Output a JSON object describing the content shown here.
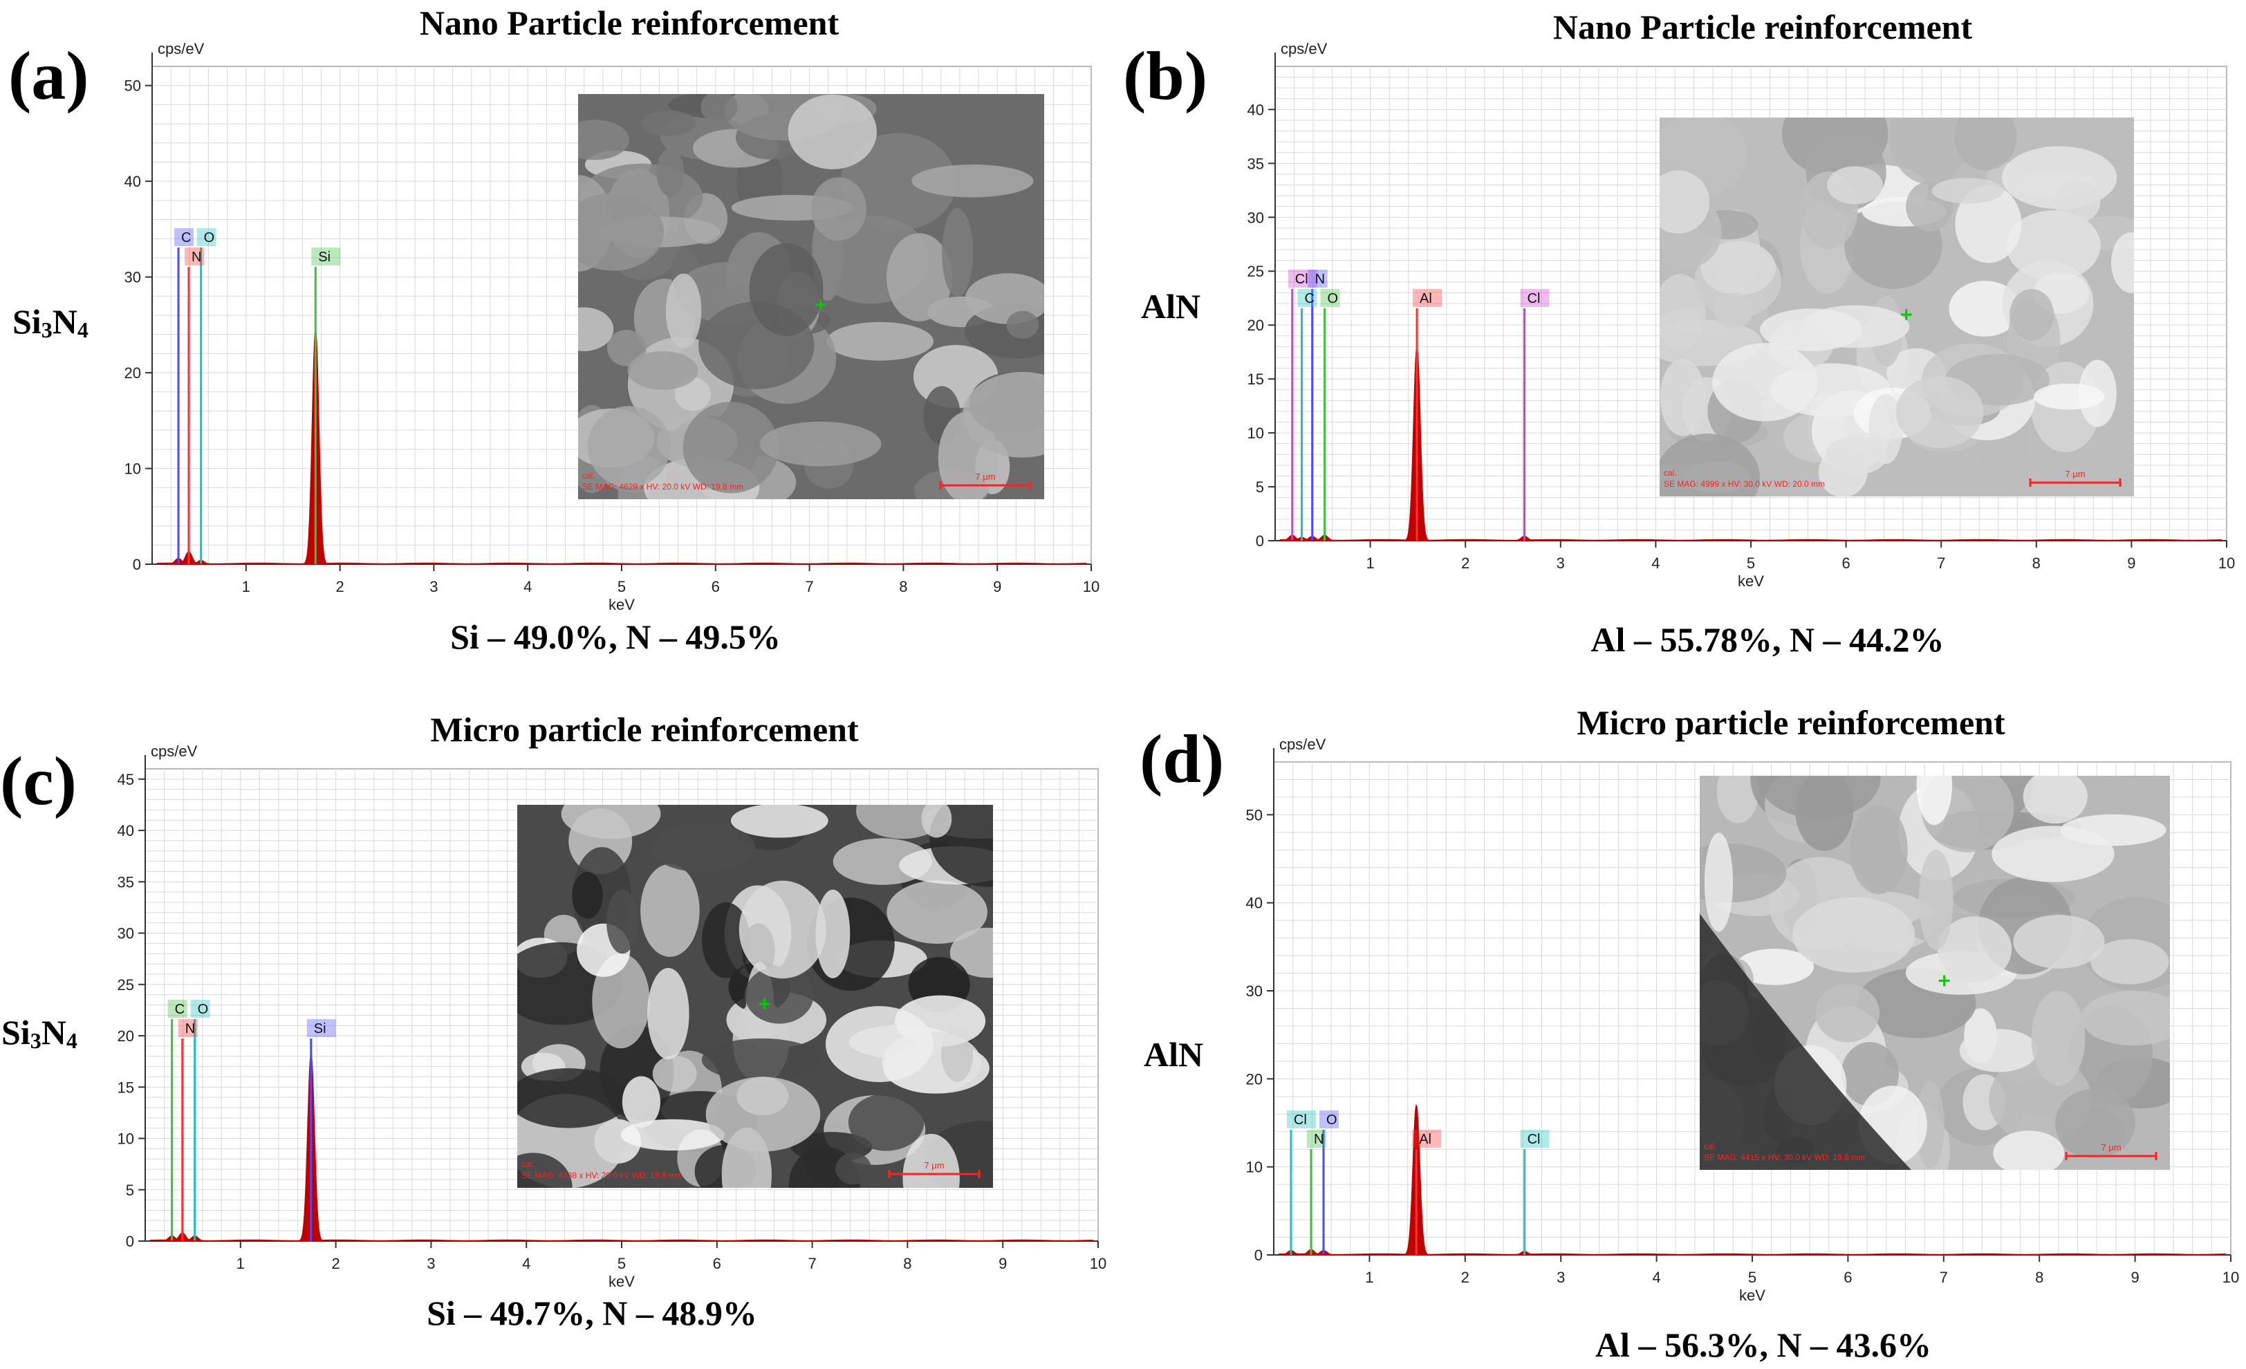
{
  "colors": {
    "spectrum": "#c00000",
    "grid": "#d9d9d9",
    "carbon": "#4a4aff",
    "nitrogen": "#ff3030",
    "oxygen": "#20c0c0",
    "silicon": "#40c040",
    "aluminium": "#ff3030",
    "chlorine": "#d040d0",
    "marker": "#00cc00"
  },
  "panels": [
    {
      "letter": "(a)",
      "title": "Nano Particle reinforcement",
      "material": {
        "main": "Si",
        "sub": "3",
        "tail": "N",
        "sub2": "4"
      },
      "composition": "Si – 49.0%, N – 49.5%",
      "sem_text": {
        "cal": "cal.",
        "info": "SE MAG: 4629 x HV: 20.0 kV WD: 19.8 mm",
        "scale": "7 μm"
      }
    },
    {
      "letter": "(b)",
      "title": "Nano Particle reinforcement",
      "material": {
        "main": "AlN",
        "sub": "",
        "tail": "",
        "sub2": ""
      },
      "composition": "Al – 55.78%, N – 44.2%",
      "sem_text": {
        "cal": "cal.",
        "info": "SE MAG: 4999 x HV: 30.0 kV WD: 20.0 mm",
        "scale": "7 μm"
      }
    },
    {
      "letter": "(c)",
      "title": "Micro particle reinforcement",
      "material": {
        "main": "Si",
        "sub": "3",
        "tail": "N",
        "sub2": "4"
      },
      "composition": "Si – 49.7%, N – 48.9%",
      "sem_text": {
        "cal": "cal.",
        "info": "SE MAG: 4338 x HV: 20.0 kV WD: 19.8 mm",
        "scale": "7 μm"
      }
    },
    {
      "letter": "(d)",
      "title": "Micro particle reinforcement",
      "material": {
        "main": "AlN",
        "sub": "",
        "tail": "",
        "sub2": ""
      },
      "composition": "Al – 56.3%, N – 43.6%",
      "sem_text": {
        "cal": "cal.",
        "info": "SE MAG: 4415 x HV: 30.0 kV WD: 19.8 mm",
        "scale": "7 μm"
      }
    }
  ],
  "chart_data": [
    {
      "type": "line",
      "title": "Nano Particle reinforcement",
      "xlabel": "keV",
      "ylabel": "cps/eV",
      "xlim": [
        0,
        10
      ],
      "ylim": [
        0,
        52
      ],
      "xticks": [
        1,
        2,
        3,
        4,
        5,
        6,
        7,
        8,
        9,
        10
      ],
      "yticks": [
        0,
        10,
        20,
        30,
        40,
        50
      ],
      "grid": true,
      "peaks": [
        {
          "element": "C",
          "energy": 0.28,
          "height": 0.6,
          "label_color": "#4a4aff",
          "row": 0
        },
        {
          "element": "O",
          "energy": 0.52,
          "height": 0.4,
          "label_color": "#20c0c0",
          "row": 0
        },
        {
          "element": "N",
          "energy": 0.39,
          "height": 1.3,
          "label_color": "#ff3030",
          "row": 1
        },
        {
          "element": "Si",
          "energy": 1.74,
          "height": 24.5,
          "label_color": "#40c040",
          "row": 1
        }
      ]
    },
    {
      "type": "line",
      "title": "Nano Particle reinforcement",
      "xlabel": "keV",
      "ylabel": "cps/eV",
      "xlim": [
        0,
        10
      ],
      "ylim": [
        0,
        44
      ],
      "xticks": [
        1,
        2,
        3,
        4,
        5,
        6,
        7,
        8,
        9,
        10
      ],
      "yticks": [
        0,
        5,
        10,
        15,
        20,
        25,
        30,
        35,
        40
      ],
      "grid": true,
      "peaks": [
        {
          "element": "Cl",
          "energy": 0.18,
          "height": 0.5,
          "label_color": "#d040d0",
          "row": 0
        },
        {
          "element": "N",
          "energy": 0.39,
          "height": 0.4,
          "label_color": "#4a4aff",
          "row": 0
        },
        {
          "element": "C",
          "energy": 0.28,
          "height": 0.3,
          "label_color": "#20c0c0",
          "row": 1
        },
        {
          "element": "O",
          "energy": 0.52,
          "height": 0.5,
          "label_color": "#40c040",
          "row": 1
        },
        {
          "element": "Al",
          "energy": 1.49,
          "height": 18.0,
          "label_color": "#ff3030",
          "row": 1
        },
        {
          "element": "Cl",
          "energy": 2.62,
          "height": 0.4,
          "label_color": "#d040d0",
          "row": 1
        }
      ]
    },
    {
      "type": "line",
      "title": "Micro particle reinforcement",
      "xlabel": "keV",
      "ylabel": "cps/eV",
      "xlim": [
        0,
        10
      ],
      "ylim": [
        0,
        46
      ],
      "xticks": [
        1,
        2,
        3,
        4,
        5,
        6,
        7,
        8,
        9,
        10
      ],
      "yticks": [
        0,
        5,
        10,
        15,
        20,
        25,
        30,
        35,
        40,
        45
      ],
      "grid": true,
      "peaks": [
        {
          "element": "C",
          "energy": 0.28,
          "height": 0.5,
          "label_color": "#40c040",
          "row": 0
        },
        {
          "element": "O",
          "energy": 0.52,
          "height": 0.5,
          "label_color": "#20c0c0",
          "row": 0
        },
        {
          "element": "N",
          "energy": 0.39,
          "height": 0.8,
          "label_color": "#ff3030",
          "row": 1
        },
        {
          "element": "Si",
          "energy": 1.74,
          "height": 18.2,
          "label_color": "#4a4aff",
          "row": 1
        }
      ]
    },
    {
      "type": "line",
      "title": "Micro particle reinforcement",
      "xlabel": "keV",
      "ylabel": "cps/eV",
      "xlim": [
        0,
        10
      ],
      "ylim": [
        0,
        56
      ],
      "xticks": [
        1,
        2,
        3,
        4,
        5,
        6,
        7,
        8,
        9,
        10
      ],
      "yticks": [
        0,
        10,
        20,
        30,
        40,
        50
      ],
      "grid": true,
      "peaks": [
        {
          "element": "Cl",
          "energy": 0.18,
          "height": 0.5,
          "label_color": "#20c0c0",
          "row": 0
        },
        {
          "element": "O",
          "energy": 0.52,
          "height": 0.5,
          "label_color": "#4a4aff",
          "row": 0
        },
        {
          "element": "N",
          "energy": 0.39,
          "height": 0.6,
          "label_color": "#40c040",
          "row": 1
        },
        {
          "element": "Al",
          "energy": 1.49,
          "height": 17.0,
          "label_color": "#ff3030",
          "row": 1
        },
        {
          "element": "Cl",
          "energy": 2.62,
          "height": 0.4,
          "label_color": "#20c0c0",
          "row": 1
        }
      ]
    }
  ]
}
